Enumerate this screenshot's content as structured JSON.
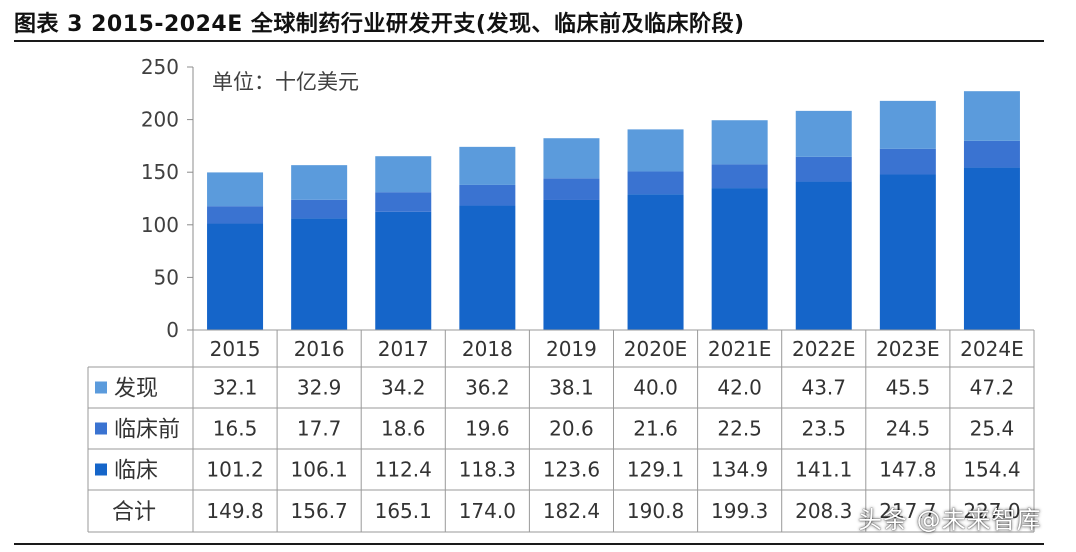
{
  "title": "图表 3 2015-2024E 全球制药行业研发开支(发现、临床前及临床阶段)",
  "watermark": "头条 @未来智库",
  "chart_data": {
    "type": "bar",
    "stacked": true,
    "unit_label": "单位：十亿美元",
    "categories": [
      "2015",
      "2016",
      "2017",
      "2018",
      "2019",
      "2020E",
      "2021E",
      "2022E",
      "2023E",
      "2024E"
    ],
    "series": [
      {
        "name": "临床",
        "color": "#1565c9",
        "values": [
          101.2,
          106.1,
          112.4,
          118.3,
          123.6,
          129.1,
          134.9,
          141.1,
          147.8,
          154.4
        ]
      },
      {
        "name": "临床前",
        "color": "#3a73d1",
        "values": [
          16.5,
          17.7,
          18.6,
          19.6,
          20.6,
          21.6,
          22.5,
          23.5,
          24.5,
          25.4
        ]
      },
      {
        "name": "发现",
        "color": "#5b9bdc",
        "values": [
          32.1,
          32.9,
          34.2,
          36.2,
          38.1,
          40.0,
          42.0,
          43.7,
          45.5,
          47.2
        ]
      }
    ],
    "table_rows": [
      {
        "label": "发现",
        "color": "#5b9bdc",
        "values": [
          "32.1",
          "32.9",
          "34.2",
          "36.2",
          "38.1",
          "40.0",
          "42.0",
          "43.7",
          "45.5",
          "47.2"
        ]
      },
      {
        "label": "临床前",
        "color": "#3a73d1",
        "values": [
          "16.5",
          "17.7",
          "18.6",
          "19.6",
          "20.6",
          "21.6",
          "22.5",
          "23.5",
          "24.5",
          "25.4"
        ]
      },
      {
        "label": "临床",
        "color": "#1565c9",
        "values": [
          "101.2",
          "106.1",
          "112.4",
          "118.3",
          "123.6",
          "129.1",
          "134.9",
          "141.1",
          "147.8",
          "154.4"
        ]
      },
      {
        "label": "合计",
        "color": null,
        "values": [
          "149.8",
          "156.7",
          "165.1",
          "174.0",
          "182.4",
          "190.8",
          "199.3",
          "208.3",
          "217.7",
          "227.0"
        ]
      }
    ],
    "yticks": [
      "0",
      "50",
      "100",
      "150",
      "200",
      "250"
    ],
    "ylim": [
      0,
      250
    ],
    "grid": false,
    "legend": "table"
  }
}
